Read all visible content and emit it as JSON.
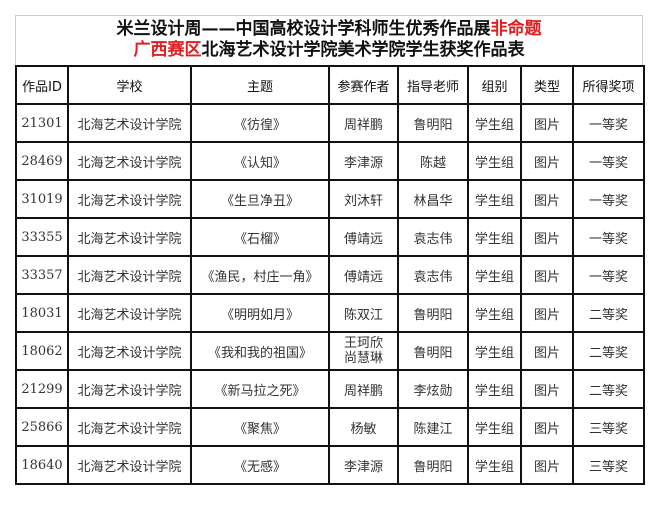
{
  "title": {
    "line1_black": "米兰设计周——中国高校设计学科师生优秀作品展",
    "line1_red": "非命题",
    "line2_red": "广西赛区",
    "line2_black": "北海艺术设计学院美术学院学生获奖作品表"
  },
  "headers": [
    "作品ID",
    "学校",
    "主题",
    "参赛作者",
    "指导老师",
    "组别",
    "类型",
    "所得奖项"
  ],
  "rows": [
    [
      "21301",
      "北海艺术设计学院",
      "《彷徨》",
      "周祥鹏",
      "鲁明阳",
      "学生组",
      "图片",
      "一等奖"
    ],
    [
      "28469",
      "北海艺术设计学院",
      "《认知》",
      "李津源",
      "陈越",
      "学生组",
      "图片",
      "一等奖"
    ],
    [
      "31019",
      "北海艺术设计学院",
      "《生旦净丑》",
      "刘沐轩",
      "林昌华",
      "学生组",
      "图片",
      "一等奖"
    ],
    [
      "33355",
      "北海艺术设计学院",
      "《石榴》",
      "傅靖远",
      "袁志伟",
      "学生组",
      "图片",
      "一等奖"
    ],
    [
      "33357",
      "北海艺术设计学院",
      "《渔民，村庄一角》",
      "傅靖远",
      "袁志伟",
      "学生组",
      "图片",
      "一等奖"
    ],
    [
      "18031",
      "北海艺术设计学院",
      "《明明如月》",
      "陈双江",
      "鲁明阳",
      "学生组",
      "图片",
      "二等奖"
    ],
    [
      "18062",
      "北海艺术设计学院",
      "《我和我的祖国》",
      "王珂欣 尚慧琳",
      "鲁明阳",
      "学生组",
      "图片",
      "二等奖"
    ],
    [
      "21299",
      "北海艺术设计学院",
      "《新马拉之死》",
      "周祥鹏",
      "李炫勋",
      "学生组",
      "图片",
      "二等奖"
    ],
    [
      "25866",
      "北海艺术设计学院",
      "《聚焦》",
      "杨敏",
      "陈建江",
      "学生组",
      "图片",
      "三等奖"
    ],
    [
      "18640",
      "北海艺术设计学院",
      "《无感》",
      "李津源",
      "鲁明阳",
      "学生组",
      "图片",
      "三等奖"
    ]
  ]
}
